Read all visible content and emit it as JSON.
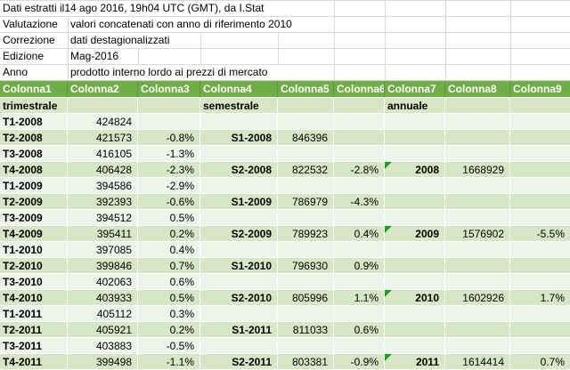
{
  "meta": {
    "rows": [
      {
        "label": "",
        "value": "Dati estratti il14 ago 2016, 19h04 UTC (GMT), da I.Stat"
      },
      {
        "label": "Valutazione",
        "value": "valori concatenati con anno di riferimento 2010"
      },
      {
        "label": "Correzione",
        "value": "dati destagionalizzati"
      },
      {
        "label": "Edizione",
        "value": "Mag-2016"
      },
      {
        "label": "Anno",
        "value": "prodotto interno lordo ai prezzi di mercato"
      }
    ]
  },
  "table": {
    "headers": [
      "Colonna1",
      "Colonna2",
      "Colonna3",
      "Colonna4",
      "Colonna5",
      "Colonna6",
      "Colonna7",
      "Colonna8",
      "Colonna9"
    ],
    "subheaders": [
      "trimestrale",
      "",
      "",
      "semestrale",
      "",
      "",
      "annuale",
      "",
      ""
    ],
    "rows": [
      [
        "T1-2008",
        "424824",
        "",
        "",
        "",
        "",
        "",
        "",
        ""
      ],
      [
        "T2-2008",
        "421573",
        "-0.8%",
        "S1-2008",
        "846396",
        "",
        "",
        "",
        ""
      ],
      [
        "T3-2008",
        "416105",
        "-1.3%",
        "",
        "",
        "",
        "",
        "",
        ""
      ],
      [
        "T4-2008",
        "406428",
        "-2.3%",
        "S2-2008",
        "822532",
        "-2.8%",
        "2008",
        "1668929",
        ""
      ],
      [
        "T1-2009",
        "394586",
        "-2.9%",
        "",
        "",
        "",
        "",
        "",
        ""
      ],
      [
        "T2-2009",
        "392393",
        "-0.6%",
        "S1-2009",
        "786979",
        "-4.3%",
        "",
        "",
        ""
      ],
      [
        "T3-2009",
        "394512",
        "0.5%",
        "",
        "",
        "",
        "",
        "",
        ""
      ],
      [
        "T4-2009",
        "395411",
        "0.2%",
        "S2-2009",
        "789923",
        "0.4%",
        "2009",
        "1576902",
        "-5.5%"
      ],
      [
        "T1-2010",
        "397085",
        "0.4%",
        "",
        "",
        "",
        "",
        "",
        ""
      ],
      [
        "T2-2010",
        "399846",
        "0.7%",
        "S1-2010",
        "796930",
        "0.9%",
        "",
        "",
        ""
      ],
      [
        "T3-2010",
        "402063",
        "0.6%",
        "",
        "",
        "",
        "",
        "",
        ""
      ],
      [
        "T4-2010",
        "403933",
        "0.5%",
        "S2-2010",
        "805996",
        "1.1%",
        "2010",
        "1602926",
        "1.7%"
      ],
      [
        "T1-2011",
        "405112",
        "0.3%",
        "",
        "",
        "",
        "",
        "",
        ""
      ],
      [
        "T2-2011",
        "405921",
        "0.2%",
        "S1-2011",
        "811033",
        "0.6%",
        "",
        "",
        ""
      ],
      [
        "T3-2011",
        "403883",
        "-0.5%",
        "",
        "",
        "",
        "",
        "",
        ""
      ],
      [
        "T4-2011",
        "399498",
        "-1.1%",
        "S2-2011",
        "803381",
        "-0.9%",
        "2011",
        "1614414",
        "0.7%"
      ]
    ],
    "error_triangle_cells": [
      {
        "row": 3,
        "col": 6
      },
      {
        "row": 7,
        "col": 6
      },
      {
        "row": 11,
        "col": 6
      },
      {
        "row": 15,
        "col": 6
      }
    ]
  },
  "colors": {
    "header_green": "#6FAD47",
    "header_sep": "#619440",
    "header_text": "#FFFFFF",
    "band_dark": "#D7E6C5",
    "band_light": "#EEF4E9",
    "gridline": "#FFFFFF",
    "meta_gridline": "#D9D9D9",
    "triangle_green": "#229A22",
    "body_text": "#000000"
  }
}
